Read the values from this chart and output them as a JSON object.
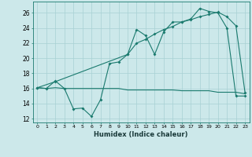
{
  "xlabel": "Humidex (Indice chaleur)",
  "bg_color": "#cce8ea",
  "grid_color": "#a8d0d4",
  "line_color": "#1a7a6e",
  "xlim": [
    -0.5,
    23.5
  ],
  "ylim": [
    11.5,
    27.5
  ],
  "xticks": [
    0,
    1,
    2,
    3,
    4,
    5,
    6,
    7,
    8,
    9,
    10,
    11,
    12,
    13,
    14,
    15,
    16,
    17,
    18,
    19,
    20,
    21,
    22,
    23
  ],
  "yticks": [
    12,
    14,
    16,
    18,
    20,
    22,
    24,
    26
  ],
  "line1_x": [
    0,
    1,
    2,
    3,
    4,
    5,
    6,
    7,
    8,
    9,
    10,
    11,
    12,
    13,
    14,
    15,
    16,
    17,
    18,
    19,
    20,
    21,
    22,
    23
  ],
  "line1_y": [
    16.1,
    16.0,
    17.0,
    16.0,
    13.3,
    13.4,
    12.3,
    14.5,
    19.3,
    19.5,
    20.5,
    23.8,
    23.0,
    20.5,
    23.5,
    24.8,
    24.8,
    25.2,
    26.6,
    26.2,
    26.0,
    24.0,
    15.0,
    15.0
  ],
  "line2_x": [
    0,
    2,
    10,
    11,
    12,
    13,
    14,
    15,
    16,
    17,
    18,
    19,
    20,
    21,
    22,
    23
  ],
  "line2_y": [
    16.1,
    16.9,
    20.5,
    22.0,
    22.5,
    23.2,
    23.8,
    24.2,
    24.8,
    25.1,
    25.5,
    25.8,
    26.1,
    25.5,
    24.3,
    15.5
  ],
  "line3_x": [
    0,
    1,
    2,
    3,
    4,
    5,
    6,
    7,
    8,
    9,
    10,
    11,
    12,
    13,
    14,
    15,
    16,
    17,
    18,
    19,
    20,
    21,
    22,
    23
  ],
  "line3_y": [
    16.1,
    16.0,
    16.1,
    16.0,
    16.0,
    16.0,
    16.0,
    16.0,
    16.0,
    16.0,
    15.8,
    15.8,
    15.8,
    15.8,
    15.8,
    15.8,
    15.7,
    15.7,
    15.7,
    15.7,
    15.5,
    15.5,
    15.5,
    15.3
  ]
}
